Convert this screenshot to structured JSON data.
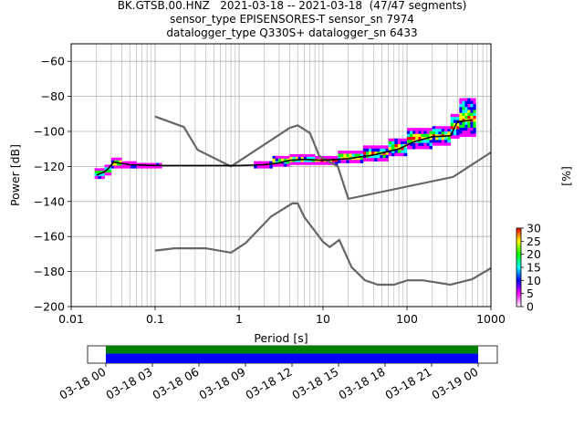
{
  "title_lines": [
    "BK.GTSB.00.HNZ   2021-03-18 -- 2021-03-18  (47/47 segments)",
    "sensor_type EPISENSORES-T sensor_sn 7974",
    "datalogger_type Q330S+ datalogger_sn 6433"
  ],
  "chart_data": {
    "type": "heatmap",
    "xlabel": "Period [s]",
    "ylabel": "Power [dB]",
    "xscale": "log",
    "xlim": [
      0.01,
      1000
    ],
    "ylim": [
      -200,
      -50
    ],
    "x_ticks": [
      0.01,
      0.1,
      1,
      10,
      100,
      1000
    ],
    "x_tick_labels": [
      "0.01",
      "0.1",
      "1",
      "10",
      "100",
      "1000"
    ],
    "y_ticks": [
      -60,
      -80,
      -100,
      -120,
      -140,
      -160,
      -180,
      -200
    ],
    "y_tick_labels": [
      "−60",
      "−80",
      "−100",
      "−120",
      "−140",
      "−160",
      "−180",
      "−200"
    ],
    "grid": true,
    "colorbar": {
      "label": "[%]",
      "range": [
        0,
        30
      ],
      "ticks": [
        0,
        5,
        10,
        15,
        20,
        25,
        30
      ],
      "colors": [
        "#ffffff",
        "#ff00ff",
        "#0000ff",
        "#00ffff",
        "#00ff00",
        "#ffff00",
        "#ff0000"
      ]
    },
    "noise_model_high": [
      [
        0.1,
        -91.5
      ],
      [
        0.22,
        -97.5
      ],
      [
        0.32,
        -110.5
      ],
      [
        0.8,
        -120
      ],
      [
        4.0,
        -98
      ],
      [
        5.0,
        -96.5
      ],
      [
        7.0,
        -101
      ],
      [
        9.0,
        -114
      ],
      [
        15.0,
        -120
      ],
      [
        20.0,
        -138.5
      ],
      [
        354.8,
        -126
      ],
      [
        1000,
        -112
      ]
    ],
    "noise_model_low": [
      [
        0.1,
        -168
      ],
      [
        0.17,
        -166.7
      ],
      [
        0.4,
        -166.7
      ],
      [
        0.8,
        -169.2
      ],
      [
        1.2,
        -163.7
      ],
      [
        2.4,
        -148.6
      ],
      [
        4.3,
        -141.1
      ],
      [
        5.0,
        -141.1
      ],
      [
        6.0,
        -149
      ],
      [
        10.0,
        -163
      ],
      [
        12.0,
        -166
      ],
      [
        15.6,
        -162
      ],
      [
        21.9,
        -177.5
      ],
      [
        31.6,
        -185
      ],
      [
        45.0,
        -187.5
      ],
      [
        70.0,
        -187.5
      ],
      [
        101,
        -185
      ],
      [
        154,
        -185
      ],
      [
        328,
        -187.5
      ],
      [
        600,
        -184.4
      ],
      [
        1000,
        -178
      ]
    ],
    "mode_line": [
      [
        0.02,
        -125
      ],
      [
        0.025,
        -123
      ],
      [
        0.028,
        -121
      ],
      [
        0.032,
        -117.5
      ],
      [
        0.05,
        -119
      ],
      [
        0.1,
        -119.5
      ],
      [
        0.5,
        -119.5
      ],
      [
        1,
        -119.5
      ],
      [
        2,
        -119
      ],
      [
        3,
        -118
      ],
      [
        4,
        -116.5
      ],
      [
        6,
        -116
      ],
      [
        10,
        -116.5
      ],
      [
        20,
        -115.5
      ],
      [
        40,
        -113.5
      ],
      [
        80,
        -110
      ],
      [
        120,
        -106
      ],
      [
        200,
        -103
      ],
      [
        330,
        -102.5
      ],
      [
        400,
        -94.5
      ],
      [
        600,
        -93.5
      ]
    ],
    "density_blocks": [
      {
        "x0": 0.019,
        "x1": 0.025,
        "ylo": -127,
        "yhi": -121
      },
      {
        "x0": 0.025,
        "x1": 0.03,
        "ylo": -125,
        "yhi": -119
      },
      {
        "x0": 0.03,
        "x1": 0.04,
        "ylo": -121,
        "yhi": -115
      },
      {
        "x0": 0.04,
        "x1": 0.06,
        "ylo": -121,
        "yhi": -117
      },
      {
        "x0": 0.06,
        "x1": 0.12,
        "ylo": -121,
        "yhi": -118
      },
      {
        "x0": 1.5,
        "x1": 2.5,
        "ylo": -121,
        "yhi": -117
      },
      {
        "x0": 2.5,
        "x1": 4,
        "ylo": -120,
        "yhi": -114
      },
      {
        "x0": 4,
        "x1": 8,
        "ylo": -119,
        "yhi": -113
      },
      {
        "x0": 8,
        "x1": 15,
        "ylo": -119,
        "yhi": -114
      },
      {
        "x0": 15,
        "x1": 30,
        "ylo": -118,
        "yhi": -111
      },
      {
        "x0": 30,
        "x1": 60,
        "ylo": -117,
        "yhi": -108
      },
      {
        "x0": 60,
        "x1": 100,
        "ylo": -114,
        "yhi": -104
      },
      {
        "x0": 100,
        "x1": 200,
        "ylo": -110,
        "yhi": -98
      },
      {
        "x0": 200,
        "x1": 330,
        "ylo": -108,
        "yhi": -97
      },
      {
        "x0": 330,
        "x1": 420,
        "ylo": -104,
        "yhi": -90
      },
      {
        "x0": 420,
        "x1": 660,
        "ylo": -103,
        "yhi": -81
      }
    ],
    "timeline": {
      "tick_labels": [
        "03-18 00",
        "03-18 03",
        "03-18 06",
        "03-18 09",
        "03-18 12",
        "03-18 15",
        "03-18 18",
        "03-18 21",
        "03-19 00"
      ],
      "coverage_colors": [
        "#008000",
        "#0000ff"
      ],
      "coverage_fraction": 1.0
    }
  }
}
